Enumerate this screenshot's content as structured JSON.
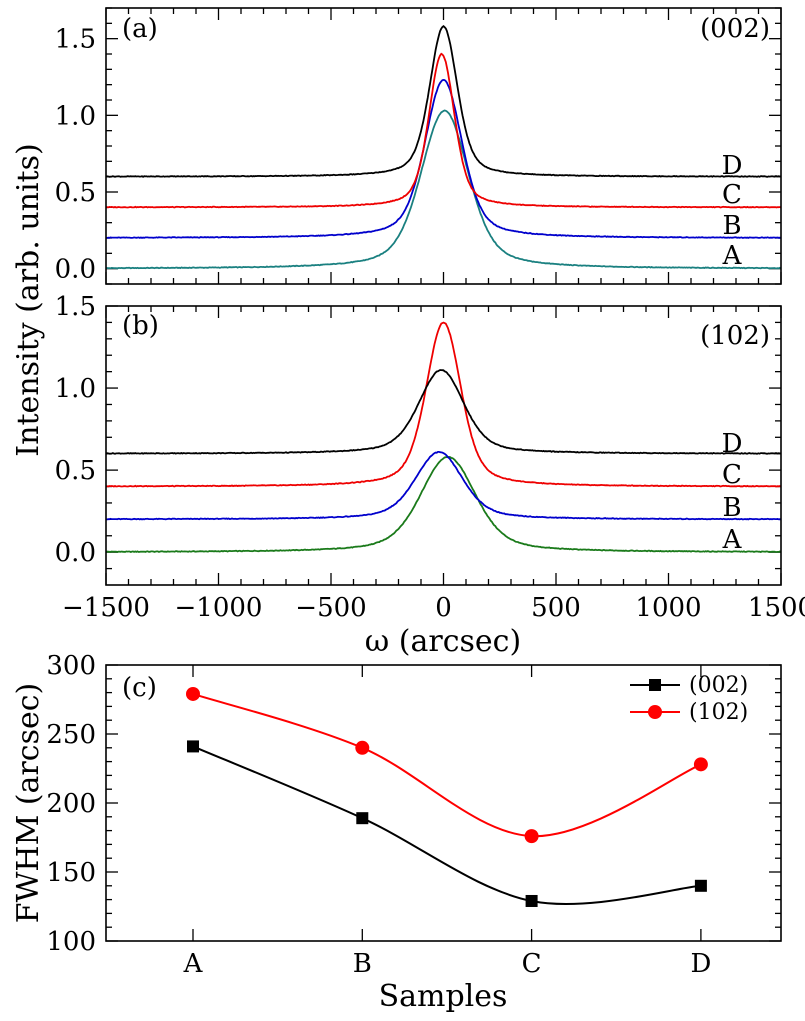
{
  "chart_data": [
    {
      "type": "line",
      "panel_label": "(a)",
      "reflection": "(002)",
      "xlabel": "",
      "ylabel": "Intensity (arb. units)",
      "xlim": [
        -1500,
        1500
      ],
      "ylim": [
        -0.1,
        1.7
      ],
      "xticks": [
        -1500,
        -1000,
        -500,
        0,
        500,
        1000,
        1500
      ],
      "yticks": [
        0.0,
        0.5,
        1.0,
        1.5
      ],
      "ytick_labels": [
        "0.0",
        "0.5",
        "1.0",
        "1.5"
      ],
      "series": [
        {
          "name": "A",
          "color": "#1a8080",
          "offset": 0.0,
          "peak": 1.03,
          "center": 5,
          "fwhm": 241
        },
        {
          "name": "B",
          "color": "#0000cc",
          "offset": 0.2,
          "peak": 1.23,
          "center": 0,
          "fwhm": 189
        },
        {
          "name": "C",
          "color": "#ee0000",
          "offset": 0.4,
          "peak": 1.4,
          "center": -8,
          "fwhm": 129
        },
        {
          "name": "D",
          "color": "#000000",
          "offset": 0.6,
          "peak": 1.58,
          "center": 0,
          "fwhm": 140
        }
      ]
    },
    {
      "type": "line",
      "panel_label": "(b)",
      "reflection": "(102)",
      "xlabel": "ω (arcsec)",
      "ylabel": "Intensity (arb. units)",
      "xlim": [
        -1500,
        1500
      ],
      "ylim": [
        -0.2,
        1.5
      ],
      "xticks": [
        -1500,
        -1000,
        -500,
        0,
        500,
        1000,
        1500
      ],
      "xtick_labels": [
        "−1500",
        "−1000",
        "−500",
        "0",
        "500",
        "1000",
        "1500"
      ],
      "yticks": [
        0.0,
        0.5,
        1.0,
        1.5
      ],
      "ytick_labels": [
        "0.0",
        "0.5",
        "1.0",
        "1.5"
      ],
      "series": [
        {
          "name": "A",
          "color": "#1a7a1a",
          "offset": 0.0,
          "peak": 0.58,
          "center": 20,
          "fwhm": 279
        },
        {
          "name": "B",
          "color": "#0000cc",
          "offset": 0.2,
          "peak": 0.61,
          "center": -20,
          "fwhm": 240
        },
        {
          "name": "C",
          "color": "#ee0000",
          "offset": 0.4,
          "peak": 1.4,
          "center": 0,
          "fwhm": 176
        },
        {
          "name": "D",
          "color": "#000000",
          "offset": 0.6,
          "peak": 1.11,
          "center": -10,
          "fwhm": 228
        }
      ]
    },
    {
      "type": "line",
      "panel_label": "(c)",
      "xlabel": "Samples",
      "ylabel": "FWHM (arcsec)",
      "categories": [
        "A",
        "B",
        "C",
        "D"
      ],
      "ylim": [
        100,
        300
      ],
      "yticks": [
        100,
        150,
        200,
        250,
        300
      ],
      "ytick_labels": [
        "100",
        "150",
        "200",
        "250",
        "300"
      ],
      "legend_position": "top-right",
      "series": [
        {
          "name": "(002)",
          "color": "#000000",
          "marker": "square",
          "values": [
            241,
            189,
            129,
            140
          ]
        },
        {
          "name": "(102)",
          "color": "#ff0000",
          "marker": "circle",
          "values": [
            279,
            240,
            176,
            228
          ]
        }
      ]
    }
  ]
}
